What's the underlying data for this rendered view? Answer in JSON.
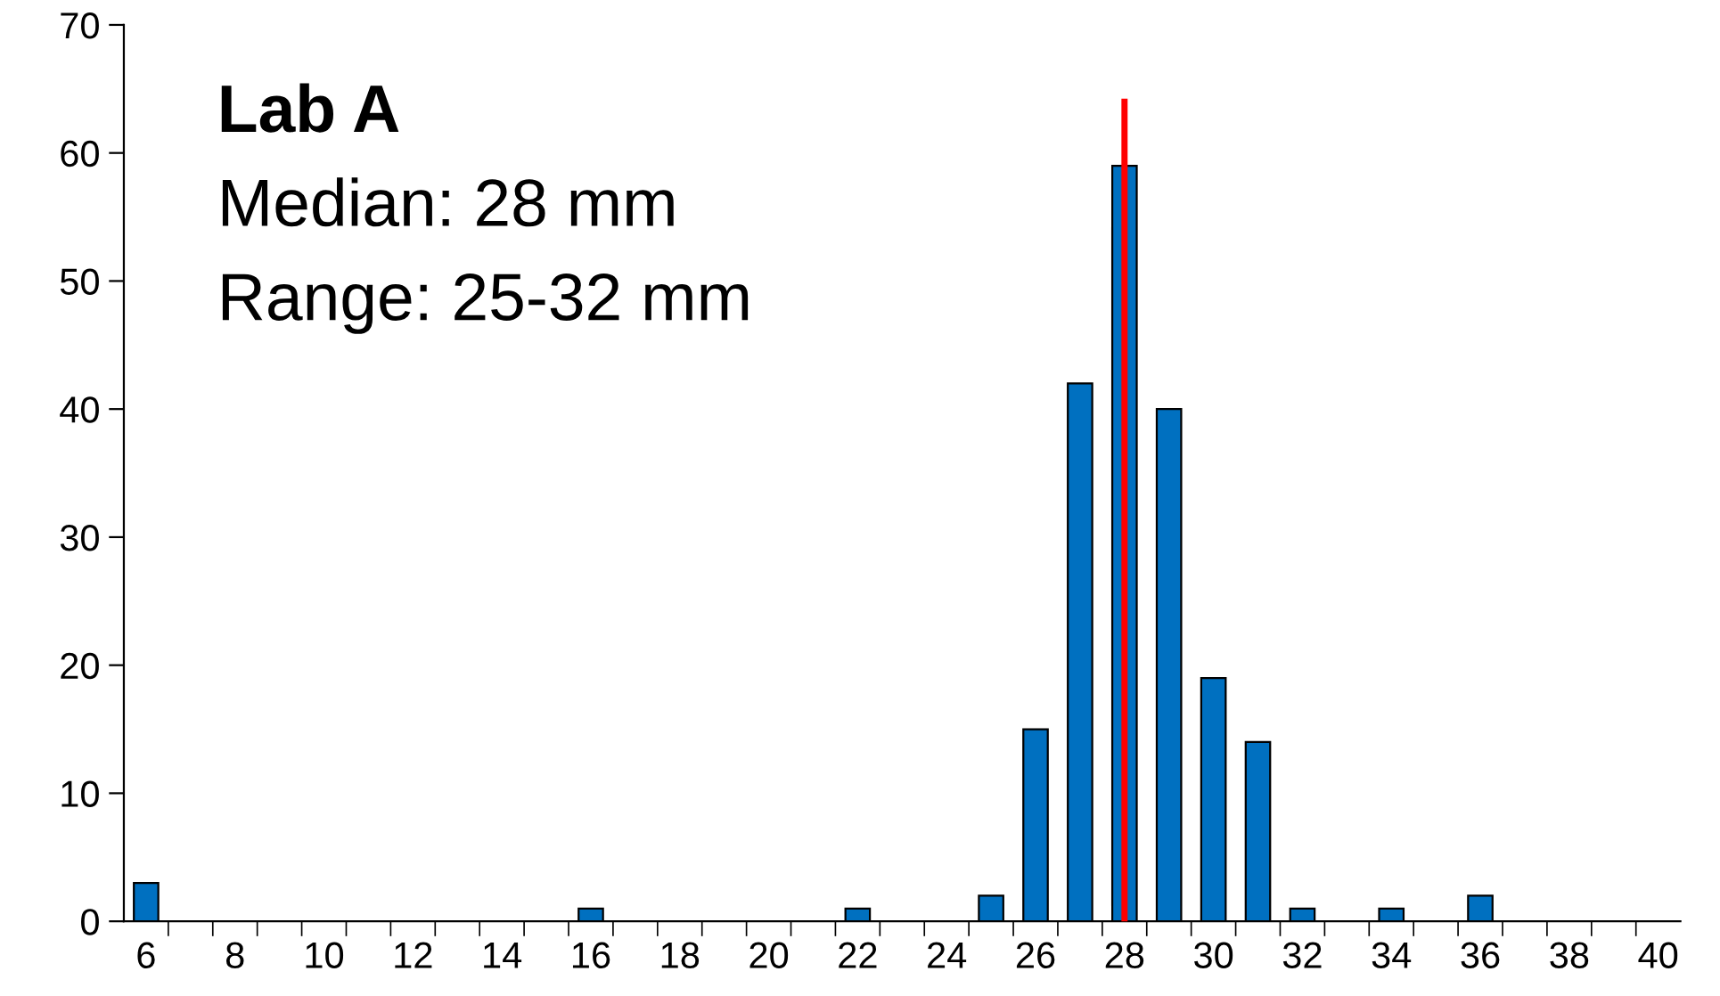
{
  "chart_data": {
    "type": "bar",
    "categories": [
      "6",
      null,
      "8",
      null,
      "10",
      null,
      "12",
      null,
      "14",
      null,
      "16",
      null,
      "18",
      null,
      "20",
      null,
      "22",
      null,
      "24",
      null,
      "26",
      null,
      "28",
      null,
      "30",
      null,
      "32",
      null,
      "34",
      null,
      "36",
      null,
      "38",
      null,
      "40"
    ],
    "series": [
      {
        "color": "#0070c0",
        "values": [
          3,
          0,
          0,
          0,
          0,
          0,
          0,
          0,
          0,
          0,
          1,
          0,
          0,
          0,
          0,
          0,
          1,
          0,
          0,
          2,
          15,
          42,
          59,
          40,
          19,
          14,
          1,
          0,
          1,
          0,
          2,
          0,
          0,
          0,
          0
        ]
      },
      {
        "type": "line",
        "color": "#ff0000",
        "x": [
          "28",
          "28"
        ],
        "values": [
          0,
          64
        ]
      }
    ],
    "ylim": [
      0,
      70
    ],
    "yticks": [
      0,
      10,
      20,
      30,
      40,
      50,
      60,
      70
    ],
    "grid": false,
    "legend": false,
    "annotations": [
      "Lab A",
      "Median: 28 mm",
      "Range: 25-32 mm"
    ]
  }
}
